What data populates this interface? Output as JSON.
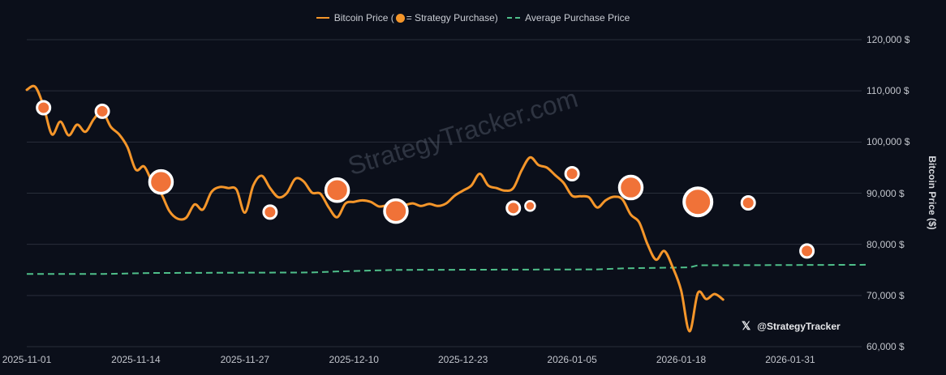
{
  "legend": {
    "price_label_prefix": "Bitcoin Price (",
    "price_label_suffix": " = Strategy Purchase)",
    "avg_label": "Average Purchase Price"
  },
  "watermark": "StrategyTracker.com",
  "handle": {
    "icon": "x-logo-icon",
    "glyph": "𝕏",
    "text": "@StrategyTracker"
  },
  "colors": {
    "background": "#0b0f1a",
    "price_line": "#f5962a",
    "purchase_marker": "#f07238",
    "marker_stroke": "#ffffff",
    "avg_line": "#4fbf8a",
    "grid": "#2a2f3a"
  },
  "chart_data": {
    "type": "line",
    "title": "",
    "xlabel": "",
    "ylabel": "Bitcoin Price ($)",
    "ylim": [
      60000,
      120000
    ],
    "grid": true,
    "legend_position": "top-center",
    "x_ticks": [
      "2025-11-01",
      "2025-11-14",
      "2025-11-27",
      "2025-12-10",
      "2025-12-23",
      "2026-01-05",
      "2026-01-18",
      "2026-01-31"
    ],
    "y_ticks": [
      "120,000 $",
      "110,000 $",
      "100,000 $",
      "90,000 $",
      "80,000 $",
      "70,000 $",
      "60,000 $"
    ],
    "series": [
      {
        "name": "Bitcoin Price",
        "style": "solid",
        "points": [
          [
            "2025-11-01",
            110200
          ],
          [
            "2025-11-02",
            110800
          ],
          [
            "2025-11-03",
            107000
          ],
          [
            "2025-11-04",
            101500
          ],
          [
            "2025-11-05",
            104000
          ],
          [
            "2025-11-06",
            101300
          ],
          [
            "2025-11-07",
            103400
          ],
          [
            "2025-11-08",
            102000
          ],
          [
            "2025-11-09",
            104500
          ],
          [
            "2025-11-10",
            106000
          ],
          [
            "2025-11-11",
            103000
          ],
          [
            "2025-11-12",
            101500
          ],
          [
            "2025-11-13",
            99000
          ],
          [
            "2025-11-14",
            94600
          ],
          [
            "2025-11-15",
            95200
          ],
          [
            "2025-11-16",
            92000
          ],
          [
            "2025-11-17",
            90000
          ],
          [
            "2025-11-18",
            86500
          ],
          [
            "2025-11-19",
            85000
          ],
          [
            "2025-11-20",
            85200
          ],
          [
            "2025-11-21",
            87800
          ],
          [
            "2025-11-22",
            86800
          ],
          [
            "2025-11-23",
            90200
          ],
          [
            "2025-11-24",
            91200
          ],
          [
            "2025-11-25",
            91000
          ],
          [
            "2025-11-26",
            90700
          ],
          [
            "2025-11-27",
            86200
          ],
          [
            "2025-11-28",
            91500
          ],
          [
            "2025-11-29",
            93400
          ],
          [
            "2025-11-30",
            91000
          ],
          [
            "2025-12-01",
            89200
          ],
          [
            "2025-12-02",
            90000
          ],
          [
            "2025-12-03",
            92800
          ],
          [
            "2025-12-04",
            92300
          ],
          [
            "2025-12-05",
            90100
          ],
          [
            "2025-12-06",
            89900
          ],
          [
            "2025-12-07",
            87200
          ],
          [
            "2025-12-08",
            85300
          ],
          [
            "2025-12-09",
            88000
          ],
          [
            "2025-12-10",
            88300
          ],
          [
            "2025-12-11",
            88600
          ],
          [
            "2025-12-12",
            88300
          ],
          [
            "2025-12-13",
            87400
          ],
          [
            "2025-12-14",
            87600
          ],
          [
            "2025-12-15",
            87200
          ],
          [
            "2025-12-16",
            87600
          ],
          [
            "2025-12-17",
            88000
          ],
          [
            "2025-12-18",
            87500
          ],
          [
            "2025-12-19",
            87900
          ],
          [
            "2025-12-20",
            87500
          ],
          [
            "2025-12-21",
            88000
          ],
          [
            "2025-12-22",
            89500
          ],
          [
            "2025-12-23",
            90500
          ],
          [
            "2025-12-24",
            91500
          ],
          [
            "2025-12-25",
            93800
          ],
          [
            "2025-12-26",
            91500
          ],
          [
            "2025-12-27",
            91000
          ],
          [
            "2025-12-28",
            90500
          ],
          [
            "2025-12-29",
            91000
          ],
          [
            "2025-12-30",
            94500
          ],
          [
            "2025-12-31",
            97000
          ],
          [
            "2026-01-01",
            95500
          ],
          [
            "2026-01-02",
            95000
          ],
          [
            "2026-01-03",
            93500
          ],
          [
            "2026-01-04",
            92000
          ],
          [
            "2026-01-05",
            89500
          ],
          [
            "2026-01-06",
            89400
          ],
          [
            "2026-01-07",
            89200
          ],
          [
            "2026-01-08",
            87200
          ],
          [
            "2026-01-09",
            88600
          ],
          [
            "2026-01-10",
            89300
          ],
          [
            "2026-01-11",
            88800
          ],
          [
            "2026-01-12",
            85800
          ],
          [
            "2026-01-13",
            84300
          ],
          [
            "2026-01-14",
            80000
          ],
          [
            "2026-01-15",
            77000
          ],
          [
            "2026-01-16",
            78700
          ],
          [
            "2026-01-17",
            75500
          ],
          [
            "2026-01-18",
            71000
          ],
          [
            "2026-01-19",
            63000
          ],
          [
            "2026-01-20",
            70500
          ],
          [
            "2026-01-21",
            69300
          ],
          [
            "2026-01-22",
            70300
          ],
          [
            "2026-01-23",
            69200
          ]
        ]
      },
      {
        "name": "Average Purchase Price",
        "style": "dashed",
        "points": [
          [
            "2025-11-01",
            74200
          ],
          [
            "2025-11-10",
            74200
          ],
          [
            "2025-11-16",
            74400
          ],
          [
            "2025-12-05",
            74500
          ],
          [
            "2025-12-08",
            74700
          ],
          [
            "2025-12-15",
            75000
          ],
          [
            "2026-01-08",
            75100
          ],
          [
            "2026-01-11",
            75300
          ],
          [
            "2026-01-19",
            75500
          ],
          [
            "2026-01-20",
            75900
          ],
          [
            "2026-02-09",
            76000
          ]
        ]
      }
    ],
    "purchases": [
      {
        "date": "2025-11-03",
        "price": 106700,
        "size": "small"
      },
      {
        "date": "2025-11-10",
        "price": 106000,
        "size": "small"
      },
      {
        "date": "2025-11-17",
        "price": 92200,
        "size": "large"
      },
      {
        "date": "2025-11-30",
        "price": 86300,
        "size": "small"
      },
      {
        "date": "2025-12-08",
        "price": 90600,
        "size": "large"
      },
      {
        "date": "2025-12-15",
        "price": 86500,
        "size": "large"
      },
      {
        "date": "2025-12-29",
        "price": 87100,
        "size": "small"
      },
      {
        "date": "2025-12-31",
        "price": 87500,
        "size": "tiny"
      },
      {
        "date": "2026-01-05",
        "price": 93800,
        "size": "small"
      },
      {
        "date": "2026-01-12",
        "price": 91100,
        "size": "large"
      },
      {
        "date": "2026-01-20",
        "price": 88300,
        "size": "xlarge"
      },
      {
        "date": "2026-01-26",
        "price": 88100,
        "size": "small"
      },
      {
        "date": "2026-02-02",
        "price": 78700,
        "size": "small"
      }
    ]
  }
}
